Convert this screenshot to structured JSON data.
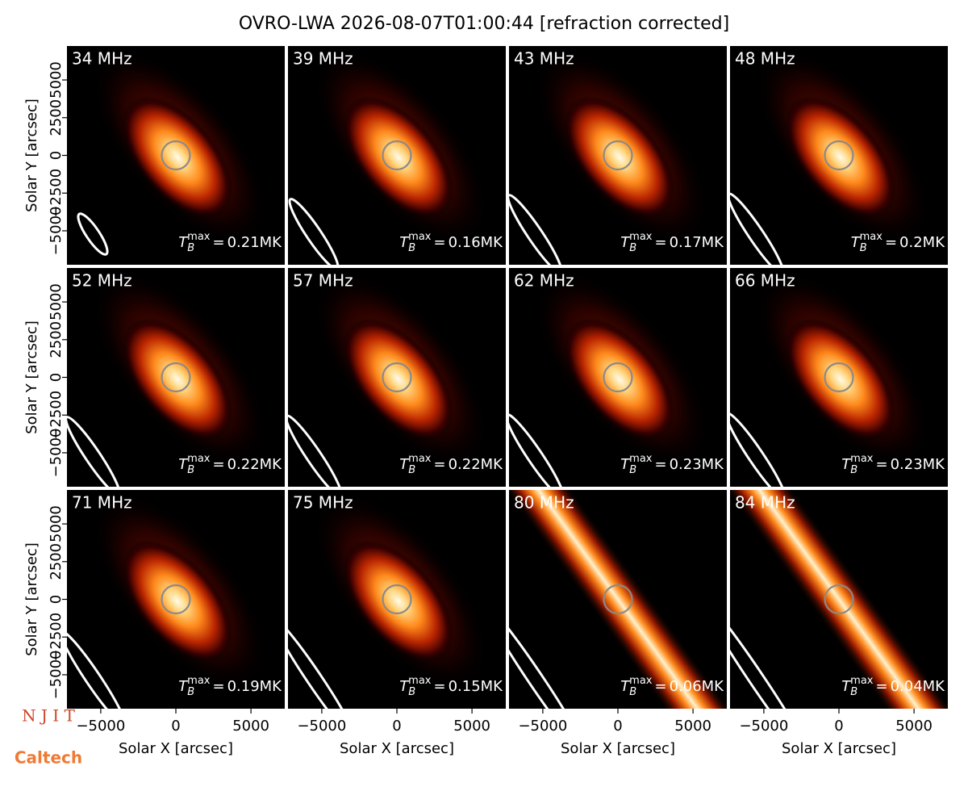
{
  "chart_data": {
    "type": "image-grid",
    "title": "OVRO-LWA 2026-08-07T01:00:44 [refraction corrected]",
    "xlabel": "Solar X [arcsec]",
    "ylabel": "Solar Y [arcsec]",
    "xlim": [
      -7250,
      7250
    ],
    "ylim": [
      -7250,
      7250
    ],
    "xticks": [
      {
        "value": -5000,
        "label": "−5000"
      },
      0,
      5000
    ],
    "yticks": [
      5000,
      2500,
      0,
      {
        "value": -2500,
        "label": "−2500"
      },
      {
        "value": -5000,
        "label": "−5000"
      }
    ],
    "tb_symbol": {
      "base": "T",
      "sub": "B",
      "sup": "max",
      "eq": "="
    },
    "categories": [
      "34 MHz",
      "39 MHz",
      "43 MHz",
      "48 MHz",
      "52 MHz",
      "57 MHz",
      "62 MHz",
      "66 MHz",
      "71 MHz",
      "75 MHz",
      "80 MHz",
      "84 MHz"
    ],
    "values": [
      0.21,
      0.16,
      0.17,
      0.2,
      0.22,
      0.22,
      0.23,
      0.23,
      0.19,
      0.15,
      0.06,
      0.04
    ],
    "value_labels": [
      "0.21MK",
      "0.16MK",
      "0.17MK",
      "0.2MK",
      "0.22MK",
      "0.22MK",
      "0.23MK",
      "0.23MK",
      "0.19MK",
      "0.15MK",
      "0.06MK",
      "0.04MK"
    ]
  },
  "logos": [
    "N J I T",
    "Caltech"
  ]
}
